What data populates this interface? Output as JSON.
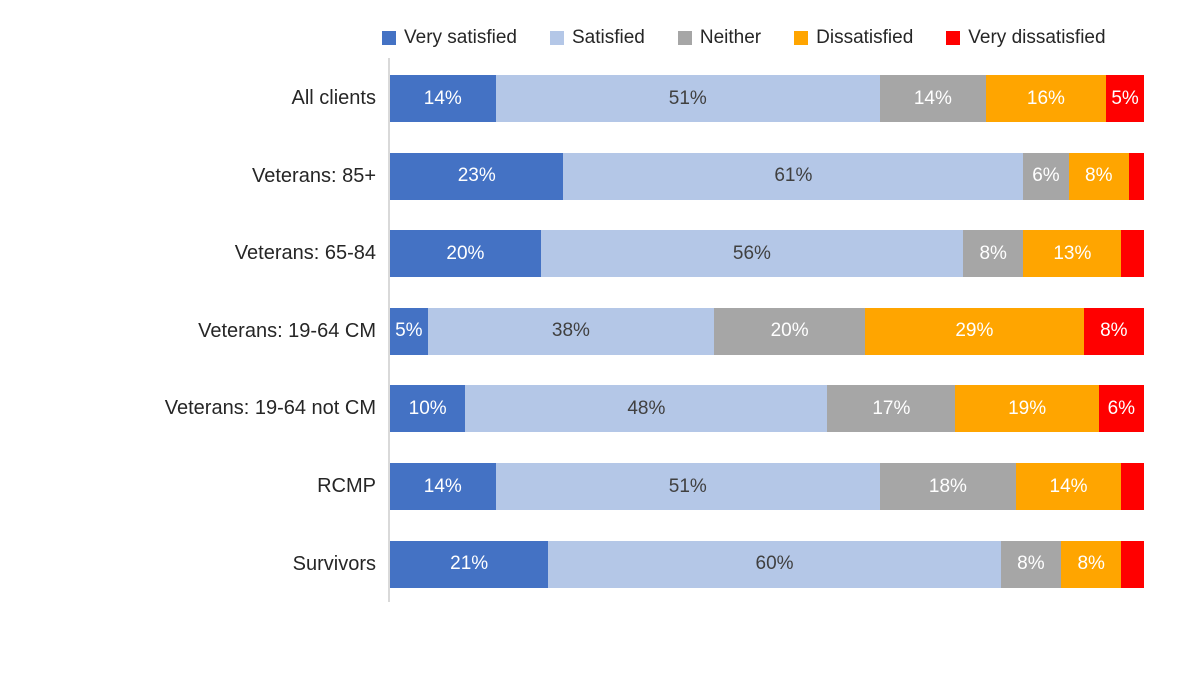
{
  "chart_data": {
    "type": "bar",
    "orientation": "horizontal",
    "stacked": true,
    "unit": "%",
    "xlim": [
      0,
      100
    ],
    "grid": false,
    "legend_position": "top",
    "title": "",
    "xlabel": "",
    "ylabel": "",
    "categories": [
      "All clients",
      "Veterans: 85+",
      "Veterans: 65-84",
      "Veterans: 19-64 CM",
      "Veterans: 19-64 not CM",
      "RCMP",
      "Survivors"
    ],
    "series": [
      {
        "name": "Very satisfied",
        "color": "#4472C4",
        "label_color": "#FFFFFF",
        "values": [
          14,
          23,
          20,
          5,
          10,
          14,
          21
        ],
        "labels": [
          "14%",
          "23%",
          "20%",
          "5%",
          "10%",
          "14%",
          "21%"
        ]
      },
      {
        "name": "Satisfied",
        "color": "#B4C7E7",
        "label_color": "#404040",
        "values": [
          51,
          61,
          56,
          38,
          48,
          51,
          60
        ],
        "labels": [
          "51%",
          "61%",
          "56%",
          "38%",
          "48%",
          "51%",
          "60%"
        ]
      },
      {
        "name": "Neither",
        "color": "#A6A6A6",
        "label_color": "#FFFFFF",
        "values": [
          14,
          6,
          8,
          20,
          17,
          18,
          8
        ],
        "labels": [
          "14%",
          "6%",
          "8%",
          "20%",
          "17%",
          "18%",
          "8%"
        ]
      },
      {
        "name": "Dissatisfied",
        "color": "#FFA500",
        "label_color": "#FFFFFF",
        "values": [
          16,
          8,
          13,
          29,
          19,
          14,
          8
        ],
        "labels": [
          "16%",
          "8%",
          "13%",
          "29%",
          "19%",
          "14%",
          "8%"
        ]
      },
      {
        "name": "Very dissatisfied",
        "color": "#FF0000",
        "label_color": "#FFFFFF",
        "values": [
          5,
          2,
          3,
          8,
          6,
          3,
          3
        ],
        "labels": [
          "5%",
          "",
          "",
          "8%",
          "6%",
          "",
          ""
        ]
      }
    ]
  }
}
